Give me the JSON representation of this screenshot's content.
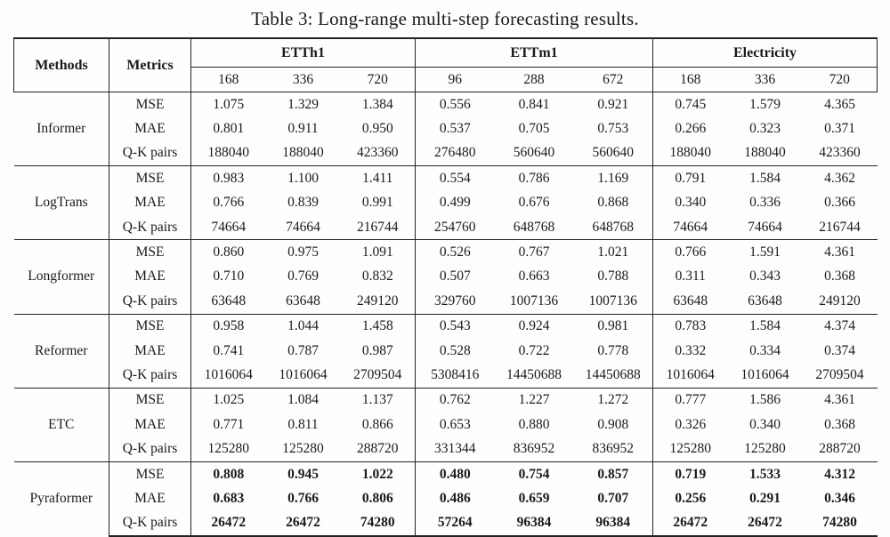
{
  "caption": "Table 3: Long-range multi-step forecasting results.",
  "table": {
    "header": {
      "methods": "Methods",
      "metrics": "Metrics",
      "groups": [
        {
          "label": "ETTh1",
          "horizons": [
            "168",
            "336",
            "720"
          ]
        },
        {
          "label": "ETTm1",
          "horizons": [
            "96",
            "288",
            "672"
          ]
        },
        {
          "label": "Electricity",
          "horizons": [
            "168",
            "336",
            "720"
          ]
        }
      ]
    },
    "rows": [
      {
        "method": "Informer",
        "bold": false,
        "metrics": [
          {
            "label": "MSE",
            "values": [
              "1.075",
              "1.329",
              "1.384",
              "0.556",
              "0.841",
              "0.921",
              "0.745",
              "1.579",
              "4.365"
            ]
          },
          {
            "label": "MAE",
            "values": [
              "0.801",
              "0.911",
              "0.950",
              "0.537",
              "0.705",
              "0.753",
              "0.266",
              "0.323",
              "0.371"
            ]
          },
          {
            "label": "Q-K pairs",
            "values": [
              "188040",
              "188040",
              "423360",
              "276480",
              "560640",
              "560640",
              "188040",
              "188040",
              "423360"
            ]
          }
        ]
      },
      {
        "method": "LogTrans",
        "bold": false,
        "metrics": [
          {
            "label": "MSE",
            "values": [
              "0.983",
              "1.100",
              "1.411",
              "0.554",
              "0.786",
              "1.169",
              "0.791",
              "1.584",
              "4.362"
            ]
          },
          {
            "label": "MAE",
            "values": [
              "0.766",
              "0.839",
              "0.991",
              "0.499",
              "0.676",
              "0.868",
              "0.340",
              "0.336",
              "0.366"
            ]
          },
          {
            "label": "Q-K pairs",
            "values": [
              "74664",
              "74664",
              "216744",
              "254760",
              "648768",
              "648768",
              "74664",
              "74664",
              "216744"
            ]
          }
        ]
      },
      {
        "method": "Longformer",
        "bold": false,
        "metrics": [
          {
            "label": "MSE",
            "values": [
              "0.860",
              "0.975",
              "1.091",
              "0.526",
              "0.767",
              "1.021",
              "0.766",
              "1.591",
              "4.361"
            ]
          },
          {
            "label": "MAE",
            "values": [
              "0.710",
              "0.769",
              "0.832",
              "0.507",
              "0.663",
              "0.788",
              "0.311",
              "0.343",
              "0.368"
            ]
          },
          {
            "label": "Q-K pairs",
            "values": [
              "63648",
              "63648",
              "249120",
              "329760",
              "1007136",
              "1007136",
              "63648",
              "63648",
              "249120"
            ]
          }
        ]
      },
      {
        "method": "Reformer",
        "bold": false,
        "metrics": [
          {
            "label": "MSE",
            "values": [
              "0.958",
              "1.044",
              "1.458",
              "0.543",
              "0.924",
              "0.981",
              "0.783",
              "1.584",
              "4.374"
            ]
          },
          {
            "label": "MAE",
            "values": [
              "0.741",
              "0.787",
              "0.987",
              "0.528",
              "0.722",
              "0.778",
              "0.332",
              "0.334",
              "0.374"
            ]
          },
          {
            "label": "Q-K pairs",
            "values": [
              "1016064",
              "1016064",
              "2709504",
              "5308416",
              "14450688",
              "14450688",
              "1016064",
              "1016064",
              "2709504"
            ]
          }
        ]
      },
      {
        "method": "ETC",
        "bold": false,
        "metrics": [
          {
            "label": "MSE",
            "values": [
              "1.025",
              "1.084",
              "1.137",
              "0.762",
              "1.227",
              "1.272",
              "0.777",
              "1.586",
              "4.361"
            ]
          },
          {
            "label": "MAE",
            "values": [
              "0.771",
              "0.811",
              "0.866",
              "0.653",
              "0.880",
              "0.908",
              "0.326",
              "0.340",
              "0.368"
            ]
          },
          {
            "label": "Q-K pairs",
            "values": [
              "125280",
              "125280",
              "288720",
              "331344",
              "836952",
              "836952",
              "125280",
              "125280",
              "288720"
            ]
          }
        ]
      },
      {
        "method": "Pyraformer",
        "bold": true,
        "metrics": [
          {
            "label": "MSE",
            "values": [
              "0.808",
              "0.945",
              "1.022",
              "0.480",
              "0.754",
              "0.857",
              "0.719",
              "1.533",
              "4.312"
            ]
          },
          {
            "label": "MAE",
            "values": [
              "0.683",
              "0.766",
              "0.806",
              "0.486",
              "0.659",
              "0.707",
              "0.256",
              "0.291",
              "0.346"
            ]
          },
          {
            "label": "Q-K pairs",
            "values": [
              "26472",
              "26472",
              "74280",
              "57264",
              "96384",
              "96384",
              "26472",
              "26472",
              "74280"
            ]
          }
        ]
      }
    ]
  }
}
